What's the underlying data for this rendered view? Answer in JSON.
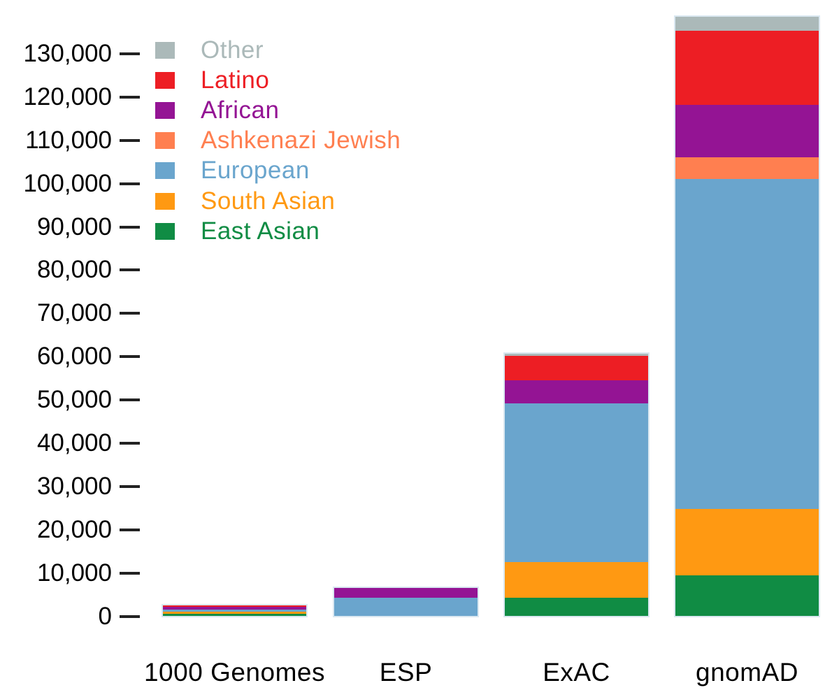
{
  "chart_data": {
    "type": "bar",
    "stacked": true,
    "title": "",
    "xlabel": "",
    "ylabel": "",
    "categories": [
      "1000 Genomes",
      "ESP",
      "ExAC",
      "gnomAD"
    ],
    "category_totals": [
      2504,
      6503,
      60706,
      138612
    ],
    "stack_order_bottom_to_top": [
      "East Asian",
      "South Asian",
      "European",
      "Ashkenazi Jewish",
      "African",
      "Latino",
      "Other"
    ],
    "series": [
      {
        "name": "East Asian",
        "color": "#108C44",
        "values": [
          504,
          0,
          4327,
          9435
        ]
      },
      {
        "name": "South Asian",
        "color": "#FF9912",
        "values": [
          489,
          0,
          8256,
          15391
        ]
      },
      {
        "name": "European",
        "color": "#6AA5CD",
        "values": [
          503,
          4300,
          36677,
          76246
        ]
      },
      {
        "name": "Ashkenazi Jewish",
        "color": "#FF7F50",
        "values": [
          0,
          0,
          0,
          5076
        ]
      },
      {
        "name": "African",
        "color": "#941494",
        "values": [
          661,
          2203,
          5203,
          12020
        ]
      },
      {
        "name": "Latino",
        "color": "#ED1E24",
        "values": [
          347,
          0,
          5789,
          17210
        ]
      },
      {
        "name": "Other",
        "color": "#ABB9B9",
        "values": [
          0,
          0,
          454,
          3234
        ]
      }
    ],
    "ylim": [
      0,
      130000
    ],
    "ytick_interval": 10000,
    "ytick_labels": [
      "0",
      "10,000",
      "20,000",
      "30,000",
      "40,000",
      "50,000",
      "60,000",
      "70,000",
      "80,000",
      "90,000",
      "100,000",
      "110,000",
      "120,000",
      "130,000"
    ],
    "grid": false,
    "legend_position": "top-left-inside"
  },
  "legend": {
    "items": [
      {
        "label": "Other",
        "color": "#ABB9B9"
      },
      {
        "label": "Latino",
        "color": "#ED1E24"
      },
      {
        "label": "African",
        "color": "#941494"
      },
      {
        "label": "Ashkenazi Jewish",
        "color": "#FF7F50"
      },
      {
        "label": "European",
        "color": "#6AA5CD"
      },
      {
        "label": "South Asian",
        "color": "#FF9912"
      },
      {
        "label": "East Asian",
        "color": "#108C44"
      }
    ]
  }
}
